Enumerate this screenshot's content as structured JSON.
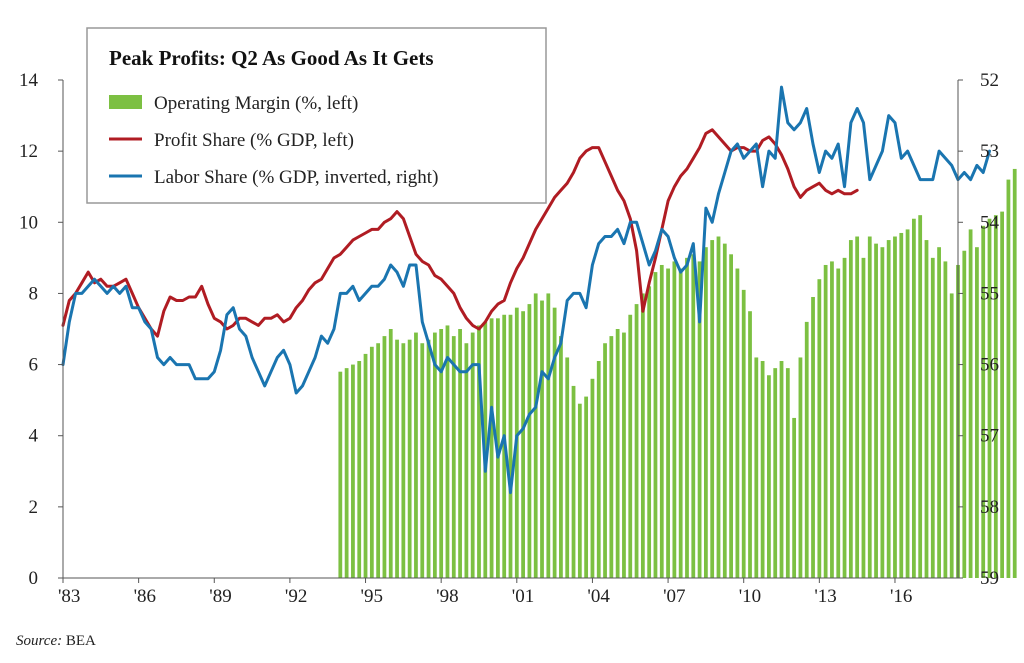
{
  "chart_data": {
    "type": "bar+line",
    "title": "Peak Profits: Q2 As Good As It Gets",
    "left_axis": {
      "range": [
        0,
        14
      ],
      "ticks": [
        0,
        2,
        4,
        6,
        8,
        10,
        12,
        14
      ]
    },
    "right_axis": {
      "range": [
        59,
        52
      ],
      "inverted": true,
      "ticks": [
        52,
        53,
        54,
        55,
        56,
        57,
        58,
        59
      ]
    },
    "x_range": [
      1983.0,
      2018.5
    ],
    "x_tick_values": [
      1983,
      1986,
      1989,
      1992,
      1995,
      1998,
      2001,
      2004,
      2007,
      2010,
      2013,
      2016
    ],
    "x_tick_labels": [
      "'83",
      "'86",
      "'89",
      "'92",
      "'95",
      "'98",
      "'01",
      "'04",
      "'07",
      "'10",
      "'13",
      "'16"
    ],
    "legend": [
      {
        "name": "Operating Margin (%, left)",
        "color": "#7cc042",
        "kind": "bar"
      },
      {
        "name": "Profit Share (% GDP, left)",
        "color": "#b01c23",
        "kind": "line"
      },
      {
        "name": "Labor Share (% GDP, inverted, right)",
        "color": "#1a75b0",
        "kind": "line"
      }
    ],
    "series": [
      {
        "name": "Operating Margin (%, left)",
        "axis": "left",
        "x_start": 1994.0,
        "x_step": 0.25,
        "values": [
          5.8,
          5.9,
          6.0,
          6.1,
          6.3,
          6.5,
          6.6,
          6.8,
          7.0,
          6.7,
          6.6,
          6.7,
          6.9,
          6.6,
          6.7,
          6.9,
          7.0,
          7.1,
          6.8,
          7.0,
          6.6,
          6.9,
          7.1,
          7.2,
          7.3,
          7.3,
          7.4,
          7.4,
          7.6,
          7.5,
          7.7,
          8.0,
          7.8,
          8.0,
          7.6,
          6.8,
          6.2,
          5.4,
          4.9,
          5.1,
          5.6,
          6.1,
          6.6,
          6.8,
          7.0,
          6.9,
          7.4,
          7.7,
          8.0,
          8.2,
          8.6,
          8.8,
          8.7,
          8.9,
          8.7,
          9.0,
          9.1,
          8.9,
          9.3,
          9.5,
          9.6,
          9.4,
          9.1,
          8.7,
          8.1,
          7.5,
          6.2,
          6.1,
          5.7,
          5.9,
          6.1,
          5.9,
          4.5,
          6.2,
          7.2,
          7.9,
          8.4,
          8.8,
          8.9,
          8.7,
          9.0,
          9.5,
          9.6,
          9.0,
          9.6,
          9.4,
          9.3,
          9.5,
          9.6,
          9.7,
          9.8,
          10.1,
          10.2,
          9.5,
          9.0,
          9.3,
          8.9,
          8.0,
          8.8,
          9.2,
          9.8,
          9.3,
          9.9,
          10.1,
          10.2,
          10.3,
          11.2,
          11.5
        ]
      },
      {
        "name": "Profit Share (% GDP, left)",
        "axis": "left",
        "x_start": 1983.0,
        "x_step": 0.25,
        "values": [
          7.1,
          7.8,
          8.0,
          8.3,
          8.6,
          8.3,
          8.4,
          8.2,
          8.2,
          8.3,
          8.4,
          8.0,
          7.6,
          7.3,
          7.0,
          6.8,
          7.5,
          7.9,
          7.8,
          7.8,
          7.9,
          7.9,
          8.2,
          7.7,
          7.3,
          7.2,
          7.0,
          7.1,
          7.3,
          7.3,
          7.2,
          7.1,
          7.3,
          7.3,
          7.4,
          7.2,
          7.3,
          7.6,
          7.8,
          8.1,
          8.3,
          8.4,
          8.7,
          9.0,
          9.1,
          9.3,
          9.5,
          9.6,
          9.7,
          9.8,
          9.8,
          10.0,
          10.1,
          10.3,
          10.1,
          9.6,
          9.1,
          8.9,
          8.8,
          8.5,
          8.4,
          8.2,
          8.0,
          7.6,
          7.3,
          7.1,
          7.0,
          7.2,
          7.5,
          7.7,
          7.8,
          8.3,
          8.7,
          9.0,
          9.4,
          9.8,
          10.1,
          10.4,
          10.7,
          10.9,
          11.1,
          11.4,
          11.8,
          12.0,
          12.1,
          12.1,
          11.7,
          11.3,
          10.9,
          10.6,
          10.1,
          9.2,
          7.5,
          8.3,
          9.0,
          9.8,
          10.6,
          11.0,
          11.3,
          11.5,
          11.8,
          12.1,
          12.5,
          12.6,
          12.4,
          12.2,
          12.0,
          12.1,
          12.1,
          12.0,
          12.0,
          12.3,
          12.4,
          12.2,
          11.9,
          11.5,
          11.0,
          10.7,
          10.9,
          11.0,
          11.1,
          10.9,
          10.8,
          10.9,
          10.8,
          10.8,
          10.9
        ]
      },
      {
        "name": "Labor Share (% GDP, inverted, right)",
        "axis": "right",
        "x_start": 1983.0,
        "x_step": 0.25,
        "values": [
          56.0,
          55.4,
          55.0,
          55.0,
          54.9,
          54.8,
          54.9,
          55.0,
          54.9,
          55.0,
          54.9,
          55.2,
          55.2,
          55.4,
          55.5,
          55.9,
          56.0,
          55.9,
          56.0,
          56.0,
          56.0,
          56.2,
          56.2,
          56.2,
          56.1,
          55.8,
          55.3,
          55.2,
          55.5,
          55.6,
          55.9,
          56.1,
          56.3,
          56.1,
          55.9,
          55.8,
          56.0,
          56.4,
          56.3,
          56.1,
          55.9,
          55.6,
          55.7,
          55.5,
          55.0,
          55.0,
          54.9,
          55.1,
          55.0,
          54.9,
          54.9,
          54.8,
          54.6,
          54.7,
          54.9,
          54.6,
          54.6,
          55.4,
          55.7,
          56.0,
          56.1,
          55.9,
          56.0,
          56.1,
          56.1,
          56.0,
          56.0,
          57.5,
          56.6,
          57.3,
          57.0,
          57.8,
          57.0,
          56.9,
          56.7,
          56.6,
          56.1,
          56.2,
          55.9,
          55.7,
          55.1,
          55.0,
          55.0,
          55.2,
          54.6,
          54.3,
          54.2,
          54.2,
          54.1,
          54.3,
          54.0,
          54.0,
          54.3,
          54.6,
          54.4,
          54.1,
          54.2,
          54.5,
          54.7,
          54.6,
          54.3,
          55.4,
          53.8,
          54.0,
          53.6,
          53.3,
          53.0,
          52.9,
          53.1,
          53.0,
          52.9,
          53.5,
          53.0,
          53.1,
          52.1,
          52.6,
          52.7,
          52.6,
          52.4,
          52.9,
          53.3,
          53.0,
          53.1,
          52.9,
          53.5,
          52.6,
          52.4,
          52.6,
          53.4,
          53.2,
          53.0,
          52.5,
          52.6,
          53.1,
          53.0,
          53.2,
          53.4,
          53.4,
          53.4,
          53.0,
          53.1,
          53.2,
          53.4,
          53.3,
          53.4,
          53.2,
          53.3,
          53.0
        ]
      }
    ],
    "source_label": "Source:",
    "source_value": " BEA"
  }
}
